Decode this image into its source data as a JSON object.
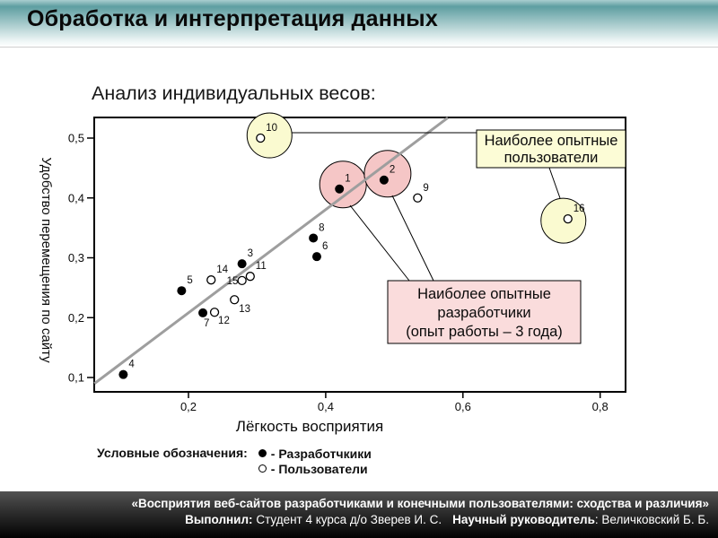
{
  "header": {
    "title": "Обработка и интерпретация данных"
  },
  "subtitle": "Анализ индивидуальных весов:",
  "colors": {
    "header_teal": "#5e9ea1",
    "highlight_yellow": "#fafad0",
    "highlight_pink": "#f5c6c6",
    "box_yellow": "#fcfcd6",
    "box_pink": "#fadcdc",
    "refline_gray": "#9e9e9e"
  },
  "chart_data": {
    "type": "scatter",
    "xlabel": "Лёгкость восприятия",
    "ylabel": "Удобство перемещения по сайту",
    "xticks": [
      0.2,
      0.4,
      0.6,
      0.8
    ],
    "xtick_labels": [
      "0,2",
      "0,4",
      "0,6",
      "0,8"
    ],
    "yticks": [
      0.1,
      0.2,
      0.3,
      0.4,
      0.5
    ],
    "ytick_labels": [
      "0,1",
      "0,2",
      "0,3",
      "0,4",
      "0,5"
    ],
    "xlim": [
      0.063,
      0.837
    ],
    "ylim": [
      0.076,
      0.534
    ],
    "series": [
      {
        "name": "Разработчкики",
        "marker": "filled",
        "points": [
          {
            "id": "1",
            "x": 0.42,
            "y": 0.415
          },
          {
            "id": "2",
            "x": 0.485,
            "y": 0.43
          },
          {
            "id": "3",
            "x": 0.278,
            "y": 0.29
          },
          {
            "id": "4",
            "x": 0.105,
            "y": 0.105
          },
          {
            "id": "5",
            "x": 0.19,
            "y": 0.245
          },
          {
            "id": "6",
            "x": 0.387,
            "y": 0.302
          },
          {
            "id": "7",
            "x": 0.221,
            "y": 0.208
          },
          {
            "id": "8",
            "x": 0.382,
            "y": 0.333
          }
        ]
      },
      {
        "name": "Пользователи",
        "marker": "open",
        "points": [
          {
            "id": "9",
            "x": 0.534,
            "y": 0.4
          },
          {
            "id": "10",
            "x": 0.305,
            "y": 0.5
          },
          {
            "id": "11",
            "x": 0.29,
            "y": 0.269
          },
          {
            "id": "12",
            "x": 0.238,
            "y": 0.209
          },
          {
            "id": "13",
            "x": 0.267,
            "y": 0.23
          },
          {
            "id": "14",
            "x": 0.233,
            "y": 0.263
          },
          {
            "id": "15",
            "x": 0.278,
            "y": 0.262
          },
          {
            "id": "16",
            "x": 0.753,
            "y": 0.365
          }
        ]
      }
    ],
    "refline": {
      "x1": 0.063,
      "y1": 0.09,
      "x2": 0.578,
      "y2": 0.534
    },
    "highlights": [
      {
        "point": "10",
        "color": "#fafad0"
      },
      {
        "point": "16",
        "color": "#fafad0"
      },
      {
        "point": "1",
        "color": "#f5c6c6"
      },
      {
        "point": "2",
        "color": "#f5c6c6"
      }
    ],
    "annotations": [
      {
        "id": "users",
        "lines": [
          "Наиболее опытные",
          "пользователи"
        ],
        "color": "#fcfcd6"
      },
      {
        "id": "devs",
        "lines": [
          "Наиболее опытные",
          "разработчики",
          "(опыт работы – 3 года)"
        ],
        "color": "#fadcdc"
      }
    ]
  },
  "legend": {
    "title": "Условные обозначения:",
    "items": [
      {
        "marker": "filled",
        "label": "- Разработчкики"
      },
      {
        "marker": "open",
        "label": "- Пользователи"
      }
    ]
  },
  "footer": {
    "line1": "«Восприятия веб-сайтов разработчиками и конечными пользователями: сходства и различия»",
    "author_label": "Выполнил:",
    "author_text": " Студент 4 курса д/о Зверев И. С.",
    "advisor_label": "Научный руководитель",
    "advisor_text": ": Величковский Б. Б."
  }
}
